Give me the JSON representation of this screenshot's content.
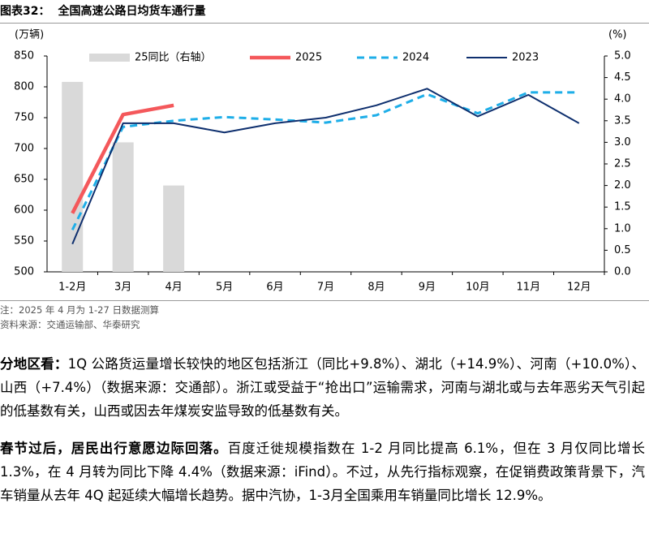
{
  "header": {
    "label": "图表32：",
    "title": "全国高速公路日均货车通行量"
  },
  "chart_data": {
    "type": "combo",
    "y_label": "(万辆)",
    "y2_label": "(%)",
    "categories": [
      "1-2月",
      "3月",
      "4月",
      "5月",
      "6月",
      "7月",
      "8月",
      "9月",
      "10月",
      "11月",
      "12月"
    ],
    "series": [
      {
        "name": "25同比（右轴）",
        "type": "bar",
        "axis": "y2",
        "color": "#d9d9d9",
        "values": [
          4.4,
          3.0,
          2.0,
          null,
          null,
          null,
          null,
          null,
          null,
          null,
          null
        ]
      },
      {
        "name": "2025",
        "type": "line",
        "color": "#f4585b",
        "values": [
          595,
          755,
          770,
          null,
          null,
          null,
          null,
          null,
          null,
          null,
          null
        ]
      },
      {
        "name": "2024",
        "type": "line",
        "dash": true,
        "color": "#1eaee8",
        "values": [
          568,
          735,
          745,
          751,
          747,
          742,
          754,
          788,
          757,
          791,
          791
        ]
      },
      {
        "name": "2023",
        "type": "line",
        "color": "#0e2f6e",
        "values": [
          545,
          741,
          741,
          726,
          741,
          750,
          770,
          797,
          752,
          787,
          741
        ]
      }
    ],
    "ylim": [
      500,
      850
    ],
    "yticks": [
      500,
      550,
      600,
      650,
      700,
      750,
      800,
      850
    ],
    "y2lim": [
      0,
      5
    ],
    "y2ticks": [
      {
        "value": 0,
        "label": "0.0"
      },
      0.5,
      {
        "value": 1,
        "label": "1.0"
      },
      1.5,
      {
        "value": 2,
        "label": "2.0"
      },
      2.5,
      {
        "value": 3,
        "label": "3.0"
      },
      3.5,
      {
        "value": 4,
        "label": "4.0"
      },
      4.5,
      {
        "value": 5,
        "label": "5.0"
      }
    ]
  },
  "notes": [
    "注：2025 年 4 月为 1-27 日数据测算",
    "资料来源：交通运输部、华泰研究"
  ],
  "paragraphs": [
    {
      "lead": "分地区看：",
      "text": "1Q 公路货运量增长较快的地区包括浙江（同比+9.8%）、湖北（+14.9%）、河南（+10.0%）、山西（+7.4%）（数据来源：交通部）。浙江或受益于“抢出口”运输需求，河南与湖北或与去年恶劣天气引起的低基数有关，山西或因去年煤炭安监导致的低基数有关。"
    },
    {
      "lead": "春节过后，居民出行意愿边际回落。",
      "text": "百度迁徙规模指数在 1-2 月同比提高 6.1%，但在 3 月仅同比增长 1.3%，在 4 月转为同比下降 4.4%（数据来源：iFind）。不过，从先行指标观察，在促销费政策背景下，汽车销量从去年 4Q 起延续大幅增长趋势。据中汽协，1-3月全国乘用车销量同比增长 12.9%。"
    }
  ]
}
